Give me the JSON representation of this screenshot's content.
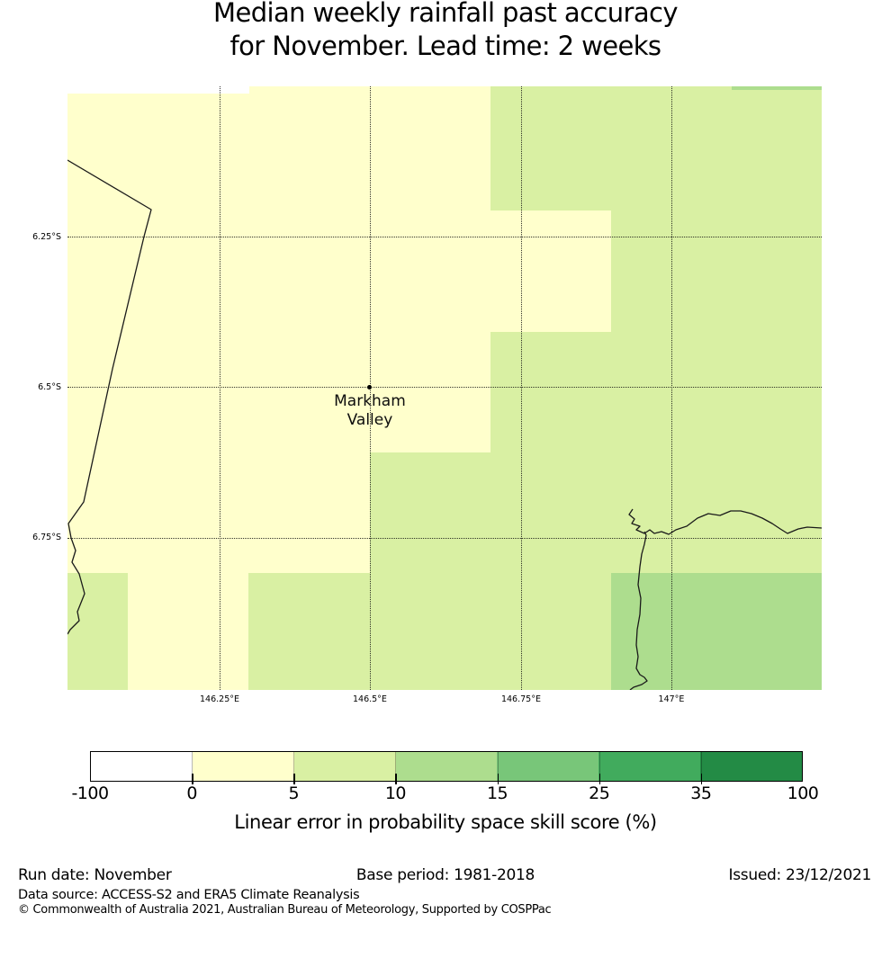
{
  "title": {
    "line1": "Median weekly rainfall past accuracy",
    "line2": "for November. Lead time: 2 weeks"
  },
  "chart_data": {
    "type": "heatmap",
    "subtype": "gridded-forecast-skill-map",
    "title": "Median weekly rainfall past accuracy for November. Lead time: 2 weeks",
    "colorbar": {
      "label": "Linear error in probability space skill score (%)",
      "tick_labels": [
        "-100",
        "0",
        "5",
        "10",
        "15",
        "25",
        "35",
        "100"
      ],
      "boundaries": [
        -100,
        0,
        5,
        10,
        15,
        25,
        35,
        100
      ],
      "colors": [
        "#ffffff",
        "#ffffcc",
        "#d9f0a3",
        "#addd8e",
        "#78c679",
        "#41ab5d",
        "#238b45"
      ]
    },
    "x_axis": {
      "ticks": [
        {
          "label": "146.25°E",
          "f": 0.2017
        },
        {
          "label": "146.5°E",
          "f": 0.4009
        },
        {
          "label": "146.75°E",
          "f": 0.6014
        },
        {
          "label": "147°E",
          "f": 0.8007
        }
      ]
    },
    "y_axis": {
      "ticks": [
        {
          "label": "6.25°S",
          "f": 0.2489
        },
        {
          "label": "6.5°S",
          "f": 0.4985
        },
        {
          "label": "6.75°S",
          "f": 0.7474
        }
      ]
    },
    "base_color_index": 1,
    "regions": [
      {
        "bin": "<0",
        "color": 0,
        "x": 0.0,
        "y": 0.0,
        "w": 0.2411,
        "h": 0.0119
      },
      {
        "bin": "5-10",
        "color": 2,
        "x": 0.5609,
        "y": 0.0,
        "w": 0.4391,
        "h": 1.0
      },
      {
        "bin": "10-15",
        "color": 3,
        "x": 0.8807,
        "y": 0.0,
        "w": 0.1193,
        "h": 0.006
      },
      {
        "bin": "0-5",
        "color": 1,
        "x": 0.5609,
        "y": 0.2057,
        "w": 0.1599,
        "h": 0.2012
      },
      {
        "bin": "5-10",
        "color": 2,
        "x": 0.4009,
        "y": 0.6066,
        "w": 0.1599,
        "h": 0.3934
      },
      {
        "bin": "5-10",
        "color": 2,
        "x": 0.2399,
        "y": 0.8063,
        "w": 0.1611,
        "h": 0.1937
      },
      {
        "bin": "5-10",
        "color": 2,
        "x": 0.0,
        "y": 0.8063,
        "w": 0.08,
        "h": 0.1937
      },
      {
        "bin": "10-15",
        "color": 3,
        "x": 0.7208,
        "y": 0.8063,
        "w": 0.2792,
        "h": 0.1937
      }
    ],
    "marker": {
      "label_lines": [
        "Markham",
        "Valley"
      ],
      "fx": 0.4009,
      "fy": 0.4985
    },
    "coastlines": [
      [
        [
          0,
          82
        ],
        [
          93,
          137
        ],
        [
          85,
          167
        ],
        [
          50,
          314
        ],
        [
          18,
          462
        ],
        [
          1,
          486
        ],
        [
          4,
          502
        ],
        [
          9,
          516
        ],
        [
          5,
          529
        ],
        [
          13,
          542
        ],
        [
          19,
          564
        ],
        [
          11,
          584
        ],
        [
          13,
          594
        ],
        [
          3,
          604
        ],
        [
          0,
          609
        ]
      ],
      [
        [
          628,
          470
        ],
        [
          624,
          476
        ],
        [
          630,
          481
        ],
        [
          627,
          486
        ],
        [
          636,
          489
        ],
        [
          632,
          493
        ],
        [
          641,
          497
        ],
        [
          647,
          493
        ],
        [
          652,
          497
        ],
        [
          660,
          495
        ],
        [
          668,
          498
        ],
        [
          676,
          493
        ],
        [
          688,
          489
        ],
        [
          700,
          480
        ],
        [
          712,
          475
        ],
        [
          725,
          477
        ],
        [
          737,
          472
        ],
        [
          748,
          472
        ],
        [
          760,
          475
        ],
        [
          772,
          480
        ],
        [
          783,
          486
        ],
        [
          792,
          492
        ],
        [
          800,
          497
        ],
        [
          812,
          492
        ],
        [
          822,
          490
        ],
        [
          838,
          491
        ]
      ],
      [
        [
          641,
          495
        ],
        [
          643,
          499
        ],
        [
          641,
          509
        ],
        [
          638,
          520
        ],
        [
          636,
          534
        ],
        [
          634,
          554
        ],
        [
          637,
          569
        ],
        [
          636,
          587
        ],
        [
          633,
          604
        ],
        [
          632,
          621
        ],
        [
          634,
          634
        ],
        [
          632,
          647
        ],
        [
          636,
          654
        ],
        [
          641,
          657
        ],
        [
          644,
          661
        ],
        [
          638,
          665
        ],
        [
          629,
          668
        ],
        [
          625,
          671
        ]
      ]
    ],
    "grid": {
      "on": true,
      "style": "dotted"
    }
  },
  "footer": {
    "run_date": "Run date: November",
    "base_period": "Base period: 1981-2018",
    "issued": "Issued: 23/12/2021",
    "data_source": "Data source: ACCESS-S2 and ERA5 Climate Reanalysis",
    "copyright": "© Commonwealth of Australia 2021, Australian Bureau of Meteorology, Supported by COSPPac"
  }
}
